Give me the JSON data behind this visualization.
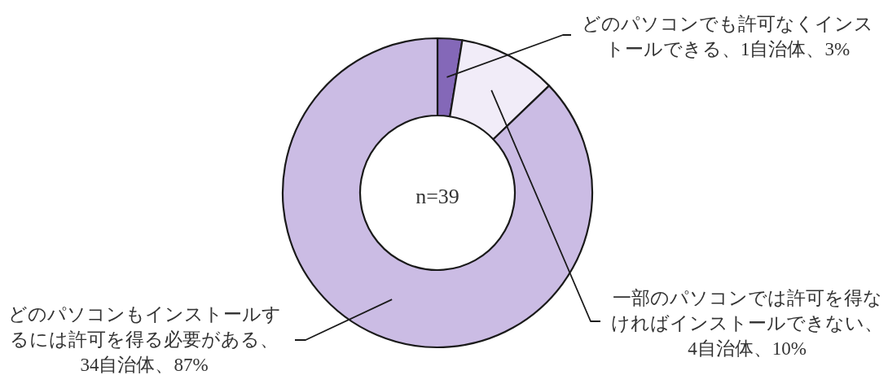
{
  "chart_data": {
    "type": "donut",
    "categories": [
      "どのパソコンでも許可なくインストールできる、1自治体、3%",
      "一部のパソコンでは許可を得なければインストールできない、4自治体、10%",
      "どのパソコンもインストールするには許可を得る必要がある、34自治体、87%"
    ],
    "values": [
      1,
      4,
      34
    ],
    "colors": [
      "#8468b8",
      "#f1ecf8",
      "#cbbce4"
    ],
    "annotations": [
      "n=39"
    ]
  }
}
